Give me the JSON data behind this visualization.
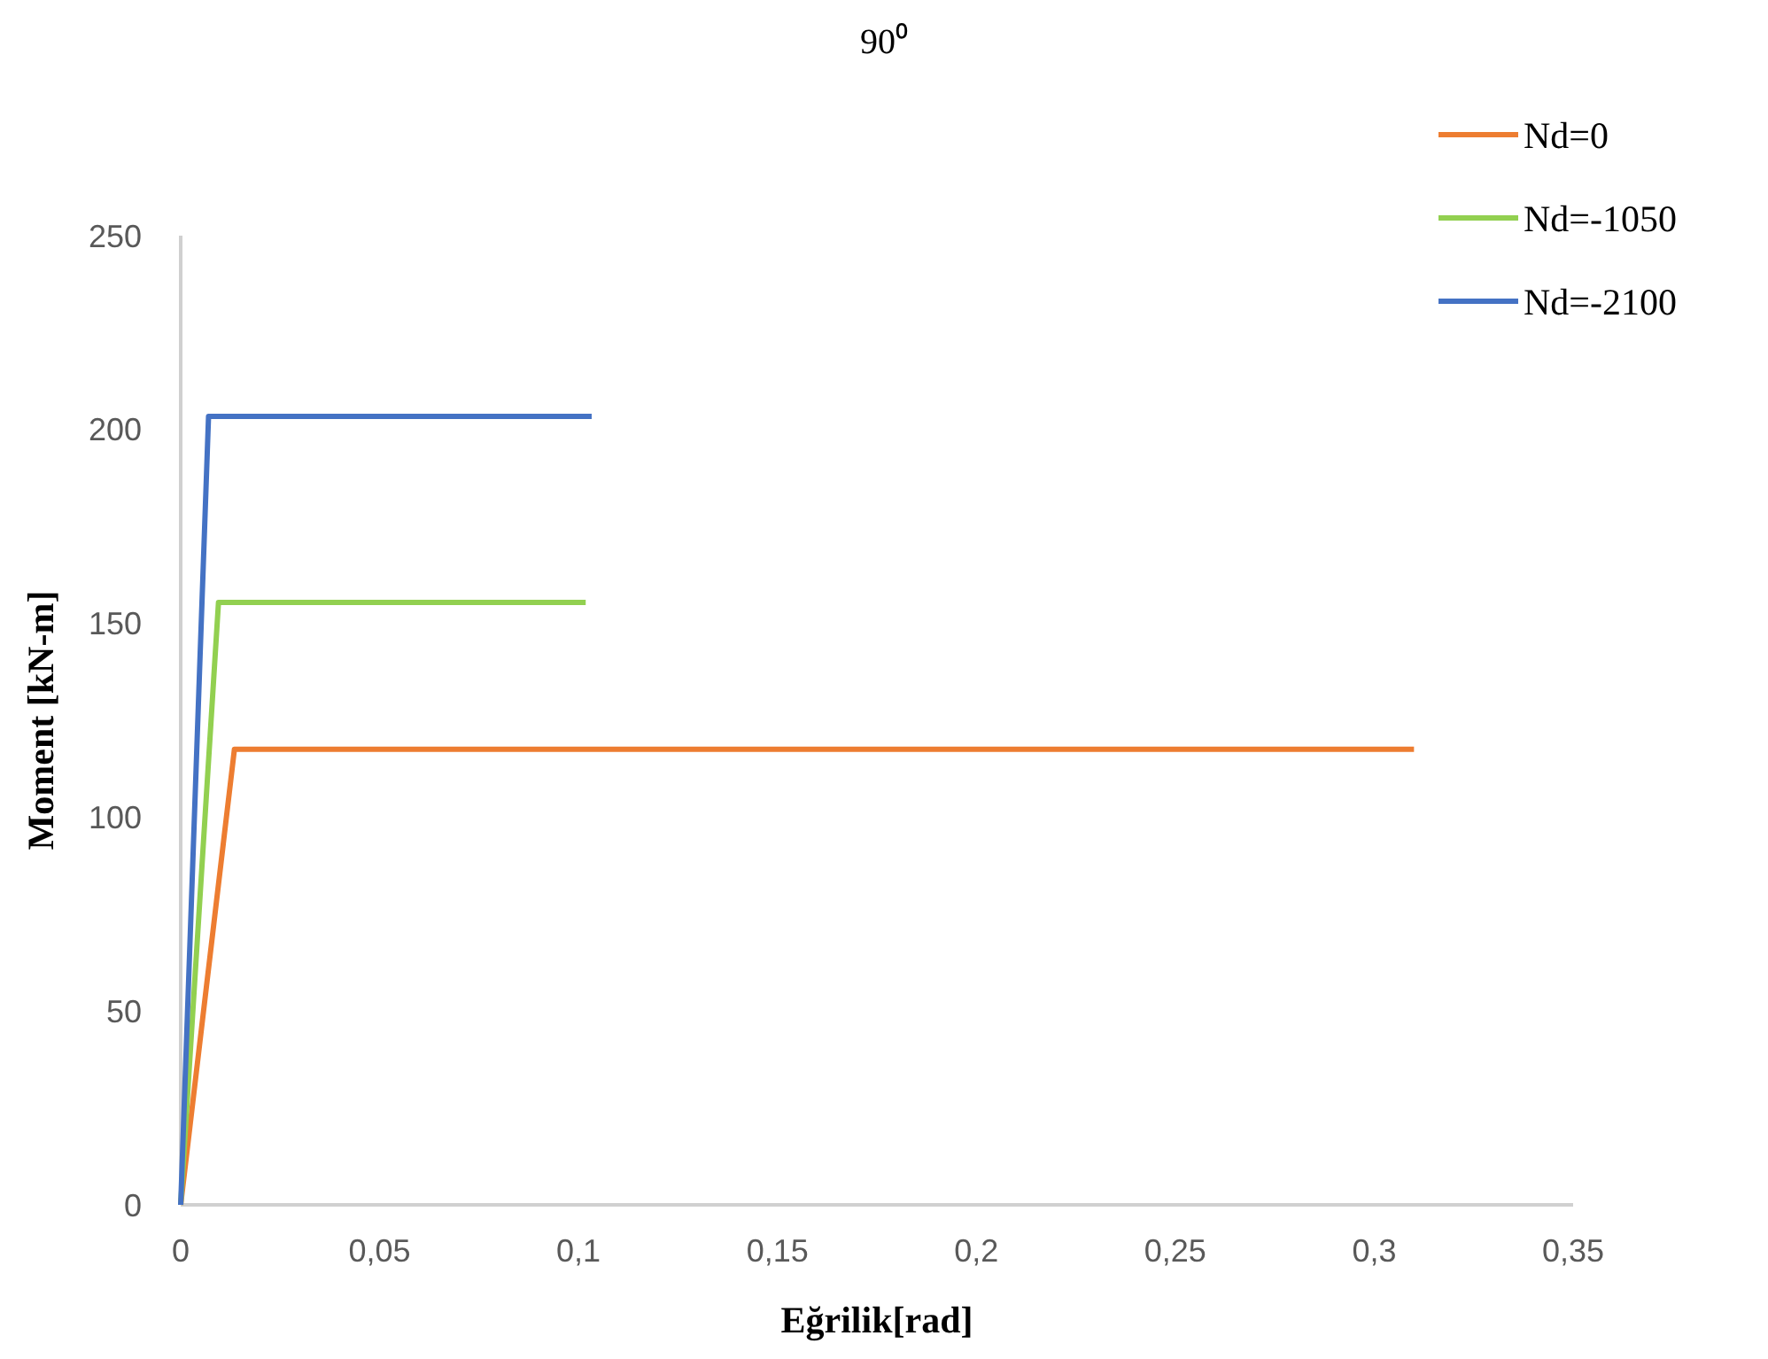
{
  "chart_data": {
    "type": "line",
    "title": "90⁰",
    "xlabel": "Eğrilik[rad]",
    "ylabel": "Moment [kN-m]",
    "xlim": [
      0,
      0.35
    ],
    "xticks": [
      0,
      {
        "value": 0.05,
        "label": "0,05"
      },
      {
        "value": 0.1,
        "label": "0,1"
      },
      {
        "value": 0.15,
        "label": "0,15"
      },
      {
        "value": 0.2,
        "label": "0,2"
      },
      {
        "value": 0.25,
        "label": "0,25"
      },
      {
        "value": 0.3,
        "label": "0,3"
      },
      {
        "value": 0.35,
        "label": "0,35"
      }
    ],
    "ylim": [
      0,
      250
    ],
    "yticks": [
      0,
      50,
      100,
      150,
      200,
      250
    ],
    "grid": false,
    "legend": "top right",
    "marker": "none",
    "line_style": "solid",
    "series": [
      {
        "name": "Nd=0",
        "color": "#ed7d31",
        "x": [
          0,
          0.0135,
          0.31
        ],
        "values": [
          0,
          117.5,
          117.5
        ]
      },
      {
        "name": "Nd=-1050",
        "color": "#92d050",
        "x": [
          0,
          0.0095,
          0.1018
        ],
        "values": [
          0,
          155.4,
          155.4
        ]
      },
      {
        "name": "Nd=-2100",
        "color": "#4472c4",
        "x": [
          0,
          0.007,
          0.1033
        ],
        "values": [
          0,
          203.4,
          203.4
        ]
      }
    ]
  }
}
